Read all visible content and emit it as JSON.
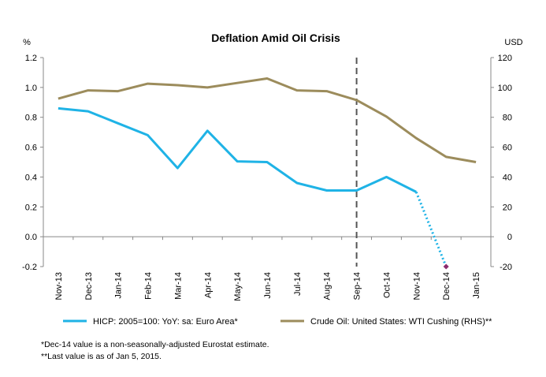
{
  "chart_data": {
    "type": "line",
    "title": "Deflation Amid Oil Crisis",
    "left_axis_unit": "%",
    "right_axis_unit": "USD",
    "categories": [
      "Nov-13",
      "Dec-13",
      "Jan-14",
      "Feb-14",
      "Mar-14",
      "Apr-14",
      "May-14",
      "Jun-14",
      "Jul-14",
      "Aug-14",
      "Sep-14",
      "Oct-14",
      "Nov-14",
      "Dec-14",
      "Jan-15"
    ],
    "y_left": {
      "min": -0.2,
      "max": 1.2,
      "step": 0.2,
      "tick_labels": [
        "-0.2",
        "0.0",
        "0.2",
        "0.4",
        "0.6",
        "0.8",
        "1.0",
        "1.2"
      ]
    },
    "y_right": {
      "min": -20,
      "max": 120,
      "step": 20,
      "tick_labels": [
        "-20",
        "0",
        "20",
        "40",
        "60",
        "80",
        "100",
        "120"
      ]
    },
    "grid": false,
    "vertical_marker": {
      "category": "Sep-14",
      "style": "dashed"
    },
    "legend_position": "bottom",
    "series": [
      {
        "name": "HICP: 2005=100: YoY: sa: Euro Area*",
        "axis": "left",
        "color": "#1fb3e6",
        "values": [
          0.86,
          0.84,
          0.76,
          0.68,
          0.46,
          0.71,
          0.505,
          0.5,
          0.36,
          0.31,
          0.31,
          0.4,
          0.3,
          -0.2,
          null
        ],
        "dotted_from_index": 12
      },
      {
        "name": "Crude Oil: United States: WTI Cushing (RHS)**",
        "axis": "right",
        "color": "#9c8c5c",
        "values": [
          92.5,
          98,
          97.5,
          102.5,
          101.5,
          100,
          103,
          106,
          98,
          97.5,
          91.5,
          80.5,
          66,
          53.5,
          50
        ]
      }
    ],
    "footnotes": [
      "*Dec-14 value is a non-seasonally-adjusted Eurostat estimate.",
      "**Last value is as of Jan 5, 2015."
    ]
  },
  "colors": {
    "axis": "#888888",
    "marker_line": "#555555",
    "dec_point": "#8b2c6f"
  }
}
